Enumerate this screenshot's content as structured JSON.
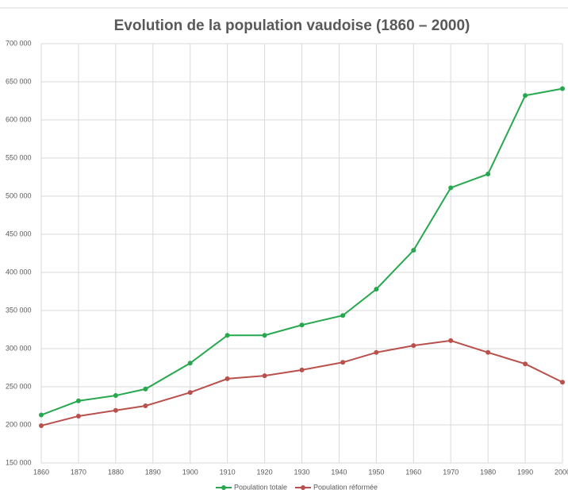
{
  "chart_data": {
    "type": "line",
    "title": "Evolution de la population vaudoise (1860 – 2000)",
    "x": [
      1860,
      1870,
      1880,
      1888,
      1900,
      1910,
      1920,
      1930,
      1941,
      1950,
      1960,
      1970,
      1980,
      1990,
      2000
    ],
    "series": [
      {
        "name": "Population totale",
        "color": "#27a84f",
        "values": [
          213000,
          231500,
          238500,
          247000,
          281000,
          317500,
          317500,
          331000,
          343500,
          378000,
          429000,
          511000,
          529000,
          632000,
          641000
        ]
      },
      {
        "name": "Population réformée",
        "color": "#b9504c",
        "values": [
          199000,
          211500,
          219000,
          225000,
          242500,
          260500,
          264500,
          272000,
          282000,
          295000,
          304000,
          310500,
          295000,
          280000,
          256000
        ]
      }
    ],
    "xlim": [
      1860,
      2000
    ],
    "xticks": [
      1860,
      1870,
      1880,
      1890,
      1900,
      1910,
      1920,
      1930,
      1940,
      1950,
      1960,
      1970,
      1980,
      1990,
      2000
    ],
    "ylim": [
      150000,
      700000
    ],
    "yticks": [
      {
        "value": 150000,
        "label": "150 000"
      },
      {
        "value": 200000,
        "label": "200 000"
      },
      {
        "value": 250000,
        "label": "250 000"
      },
      {
        "value": 300000,
        "label": "300 000"
      },
      {
        "value": 350000,
        "label": "350 000"
      },
      {
        "value": 400000,
        "label": "400 000"
      },
      {
        "value": 450000,
        "label": "450 000"
      },
      {
        "value": 500000,
        "label": "500 000"
      },
      {
        "value": 550000,
        "label": "550 000"
      },
      {
        "value": 600000,
        "label": "600 000"
      },
      {
        "value": 650000,
        "label": "650 000"
      },
      {
        "value": 700000,
        "label": "700 000"
      }
    ],
    "grid": true,
    "legend": "bottom"
  }
}
